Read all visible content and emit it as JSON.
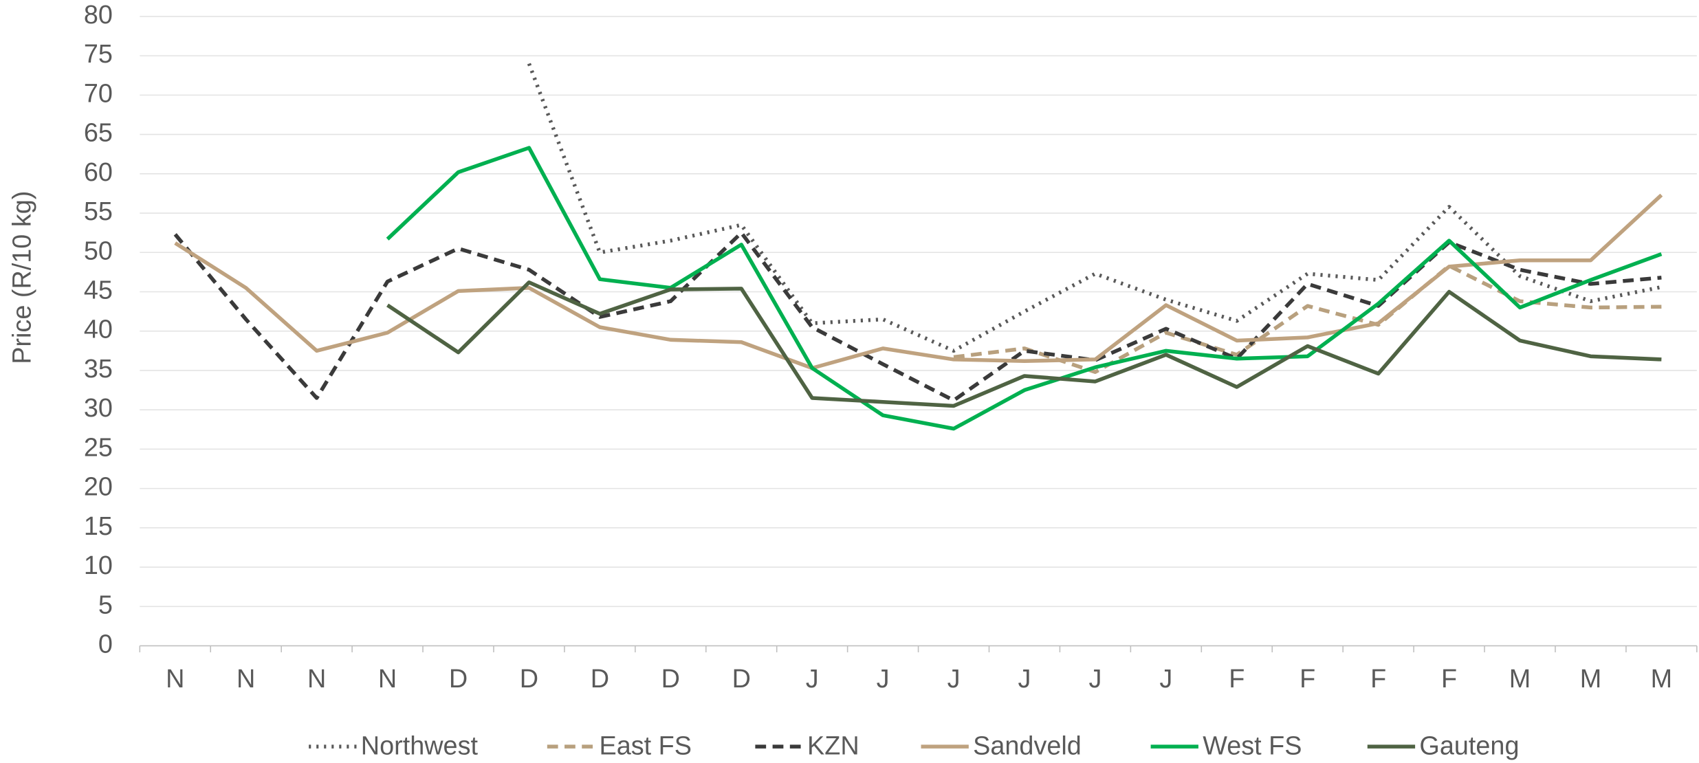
{
  "chart_data": {
    "type": "line",
    "y_label": "Price (R/10 kg)",
    "categories": [
      "N",
      "N",
      "N",
      "N",
      "D",
      "D",
      "D",
      "D",
      "D",
      "J",
      "J",
      "J",
      "J",
      "J",
      "J",
      "F",
      "F",
      "F",
      "F",
      "M",
      "M",
      "M"
    ],
    "ylim": [
      0,
      80
    ],
    "yticks": [
      0,
      5,
      10,
      15,
      20,
      25,
      30,
      35,
      40,
      45,
      50,
      55,
      60,
      65,
      70,
      75,
      80
    ],
    "grid": true,
    "legend": "bottom",
    "series": [
      {
        "name": "Northwest",
        "color": "#595959",
        "style": "dotted",
        "values": [
          null,
          null,
          null,
          null,
          null,
          74,
          50,
          51.5,
          53.5,
          41,
          41.5,
          37.5,
          42.5,
          47.3,
          44,
          41.3,
          47.3,
          46.5,
          55.8,
          47,
          43.8,
          45.6
        ]
      },
      {
        "name": "East FS",
        "color": "#b8a07e",
        "style": "dashed",
        "values": [
          null,
          null,
          null,
          null,
          null,
          null,
          null,
          null,
          null,
          null,
          null,
          36.7,
          37.8,
          34.8,
          39.8,
          37,
          43.2,
          40.8,
          48.3,
          43.8,
          43,
          43.1
        ]
      },
      {
        "name": "KZN",
        "color": "#3a3a3a",
        "style": "dashed",
        "values": [
          52.3,
          41.5,
          31.5,
          46.3,
          50.5,
          47.8,
          41.8,
          43.8,
          52.5,
          40.5,
          35.8,
          31.2,
          37.5,
          36.3,
          40.3,
          36.5,
          46,
          43.2,
          51.3,
          47.8,
          46,
          46.8
        ]
      },
      {
        "name": "Sandveld",
        "color": "#bfa27f",
        "style": "solid",
        "values": [
          51.2,
          45.5,
          37.5,
          39.8,
          45.1,
          45.5,
          40.5,
          38.9,
          38.6,
          35.3,
          37.8,
          36.4,
          36.2,
          36.4,
          43.3,
          38.8,
          39.2,
          41,
          48.2,
          49,
          49,
          57.3
        ]
      },
      {
        "name": "West FS",
        "color": "#00b050",
        "style": "solid",
        "values": [
          null,
          null,
          null,
          51.7,
          60.2,
          63.3,
          46.6,
          45.5,
          51,
          35.3,
          29.3,
          27.6,
          32.5,
          35.4,
          37.5,
          36.5,
          36.8,
          43.5,
          51.5,
          43,
          46.5,
          49.8
        ]
      },
      {
        "name": "Gauteng",
        "color": "#4f6343",
        "style": "solid",
        "values": [
          null,
          null,
          null,
          43.3,
          37.3,
          46.2,
          42.2,
          45.3,
          45.4,
          31.5,
          31,
          30.5,
          34.3,
          33.6,
          37,
          32.9,
          38.1,
          34.6,
          45,
          38.8,
          36.8,
          36.4
        ]
      }
    ]
  }
}
